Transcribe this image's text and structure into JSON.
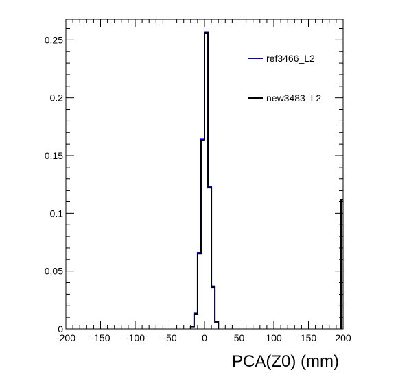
{
  "chart_data": {
    "type": "histogram",
    "xlabel": "PCA(Z0) (mm)",
    "ylabel": "",
    "xlim": [
      -200,
      200
    ],
    "ylim": [
      0,
      0.268
    ],
    "x_ticks": [
      -200,
      -150,
      -100,
      -50,
      0,
      50,
      100,
      150,
      200
    ],
    "x_tick_labels": [
      "-200",
      "-150",
      "-100",
      "-50",
      "0",
      "50",
      "100",
      "150",
      "200"
    ],
    "y_ticks": [
      0,
      0.05,
      0.1,
      0.15,
      0.2,
      0.25
    ],
    "y_tick_labels": [
      "0",
      "0.05",
      "0.1",
      "0.15",
      "0.2",
      "0.25"
    ],
    "grid": false,
    "legend_position": "top-right",
    "bin_edges": [
      -20,
      -15,
      -10,
      -5,
      0,
      5,
      10,
      15,
      20
    ],
    "series": [
      {
        "name": "ref3466_L2",
        "color": "#0000cc",
        "values": [
          0.002,
          0.014,
          0.066,
          0.164,
          0.257,
          0.123,
          0.037,
          0.006
        ],
        "overflow": 0.112
      },
      {
        "name": "new3483_L2",
        "color": "#000000",
        "values": [
          0.002,
          0.013,
          0.065,
          0.163,
          0.256,
          0.122,
          0.036,
          0.006
        ],
        "overflow": 0.112
      }
    ]
  }
}
